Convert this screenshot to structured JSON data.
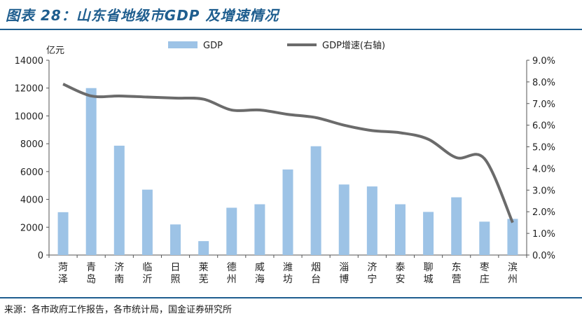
{
  "header": {
    "title": "图表 28：山东省地级市GDP 及增速情况"
  },
  "footer": {
    "source": "来源：各市政府工作报告，各市统计局，国金证券研究所"
  },
  "colors": {
    "bar": "#9dc3e6",
    "line": "#6b6b6b",
    "accent": "#1f5e8f"
  },
  "chart_data": {
    "type": "bar",
    "categories": [
      "菏泽",
      "青岛",
      "济南",
      "临沂",
      "日照",
      "莱芜",
      "德州",
      "威海",
      "潍坊",
      "烟台",
      "淄博",
      "济宁",
      "泰安",
      "聊城",
      "东营",
      "枣庄",
      "滨州"
    ],
    "category_lines": [
      [
        "菏",
        "泽"
      ],
      [
        "青",
        "岛"
      ],
      [
        "济",
        "南"
      ],
      [
        "临",
        "沂"
      ],
      [
        "日",
        "照"
      ],
      [
        "莱",
        "芜"
      ],
      [
        "德",
        "州"
      ],
      [
        "威",
        "海"
      ],
      [
        "潍",
        "坊"
      ],
      [
        "烟",
        "台"
      ],
      [
        "淄",
        "博"
      ],
      [
        "济",
        "宁"
      ],
      [
        "泰",
        "安"
      ],
      [
        "聊",
        "城"
      ],
      [
        "东",
        "营"
      ],
      [
        "枣",
        "庄"
      ],
      [
        "滨",
        "州"
      ]
    ],
    "series": [
      {
        "name": "GDP",
        "type": "bar",
        "axis": "left",
        "values": [
          3080,
          12000,
          7860,
          4700,
          2200,
          1000,
          3400,
          3650,
          6150,
          7820,
          5070,
          4930,
          3650,
          3100,
          4150,
          2400,
          2600
        ]
      },
      {
        "name": "GDP增速(右轴)",
        "type": "line",
        "axis": "right",
        "values": [
          7.9,
          7.35,
          7.35,
          7.3,
          7.25,
          7.2,
          6.7,
          6.7,
          6.5,
          6.35,
          6.0,
          5.75,
          5.65,
          5.35,
          4.5,
          4.45,
          1.5
        ]
      }
    ],
    "y_left": {
      "label": "亿元",
      "min": 0,
      "max": 14000,
      "ticks": [
        "0",
        "2000",
        "4000",
        "6000",
        "8000",
        "10000",
        "12000",
        "14000"
      ]
    },
    "y_right": {
      "min": 0,
      "max": 9,
      "ticks": [
        "0.0%",
        "1.0%",
        "2.0%",
        "3.0%",
        "4.0%",
        "5.0%",
        "6.0%",
        "7.0%",
        "8.0%",
        "9.0%"
      ]
    },
    "legend": {
      "position": "top",
      "items": [
        "GDP",
        "GDP增速(右轴)"
      ]
    }
  }
}
